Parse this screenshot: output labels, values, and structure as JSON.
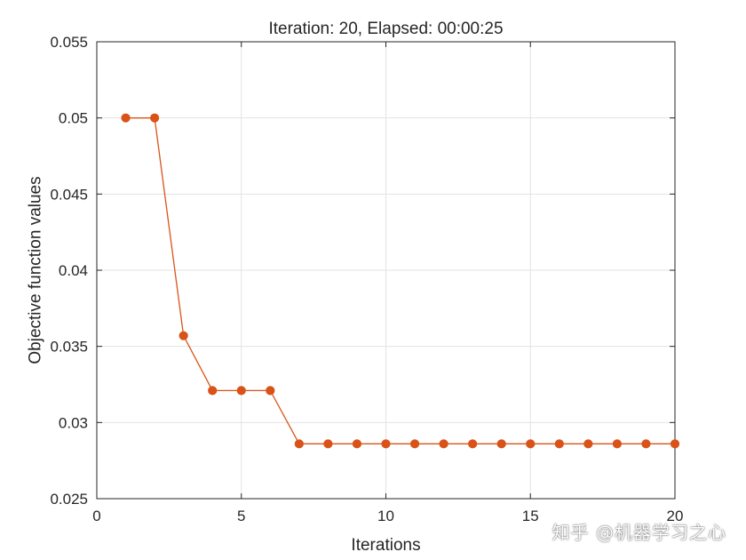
{
  "chart_data": {
    "type": "line",
    "title": "Iteration: 20, Elapsed: 00:00:25",
    "xlabel": "Iterations",
    "ylabel": "Objective function values",
    "xlim": [
      0,
      20
    ],
    "ylim": [
      0.025,
      0.055
    ],
    "xticks": [
      0,
      5,
      10,
      15,
      20
    ],
    "xtick_labels": [
      "0",
      "5",
      "10",
      "15",
      "20"
    ],
    "yticks": [
      0.025,
      0.03,
      0.035,
      0.04,
      0.045,
      0.05,
      0.055
    ],
    "ytick_labels": [
      "0.025",
      "0.03",
      "0.035",
      "0.04",
      "0.045",
      "0.05",
      "0.055"
    ],
    "grid": true,
    "series": [
      {
        "color": "#D95319",
        "marker": "circle",
        "x": [
          1,
          2,
          3,
          4,
          5,
          6,
          7,
          8,
          9,
          10,
          11,
          12,
          13,
          14,
          15,
          16,
          17,
          18,
          19,
          20
        ],
        "y": [
          0.05,
          0.05,
          0.0357,
          0.0321,
          0.0321,
          0.0321,
          0.0286,
          0.0286,
          0.0286,
          0.0286,
          0.0286,
          0.0286,
          0.0286,
          0.0286,
          0.0286,
          0.0286,
          0.0286,
          0.0286,
          0.0286,
          0.0286
        ]
      }
    ]
  },
  "watermark": "知乎 @机器学习之心"
}
